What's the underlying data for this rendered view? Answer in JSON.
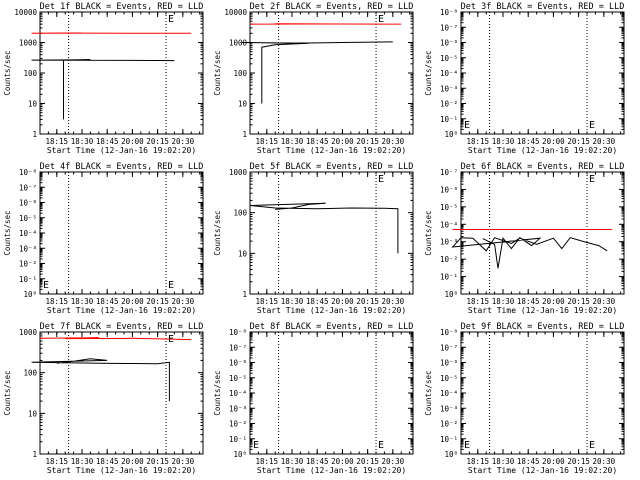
{
  "figure": {
    "xlabel": "Start Time (12-Jan-16 19:02:20)",
    "ylabel": "Counts/sec",
    "colors": {
      "events": "#000000",
      "lld": "#ff0000",
      "background": "#ffffff"
    }
  },
  "chart_data": [
    {
      "type": "line",
      "title": "Det 1f BLACK = Events, RED = LLD",
      "yscale": "log",
      "ylim": [
        1,
        10000
      ],
      "xlim": [
        "18:05",
        "20:42"
      ],
      "x_ticks": [
        "18:15",
        "18:30",
        "18:45",
        "20:00",
        "20:15",
        "20:30"
      ],
      "y_ticks": [
        "1",
        "10",
        "100",
        "1000",
        "10000"
      ],
      "marker_label": "E",
      "dotted_lines_at": [
        "18:22",
        "20:20"
      ],
      "series": [
        {
          "name": "Events",
          "color": "#000000",
          "points": [
            [
              "18:19",
              3
            ],
            [
              "18:19",
              260
            ],
            [
              "18:35",
              270
            ],
            [
              "19:00",
              265
            ],
            [
              "19:30",
              262
            ],
            [
              "20:00",
              258
            ],
            [
              "20:25",
              255
            ]
          ]
        },
        {
          "name": "LLD",
          "color": "#ff0000",
          "points": [
            [
              "18:05",
              2000
            ],
            [
              "18:30",
              2050
            ],
            [
              "19:00",
              2000
            ],
            [
              "19:30",
              2030
            ],
            [
              "20:00",
              2020
            ],
            [
              "20:35",
              2000
            ]
          ]
        }
      ]
    },
    {
      "type": "line",
      "title": "Det 2f BLACK = Events, RED = LLD",
      "yscale": "log",
      "ylim": [
        1,
        10000
      ],
      "xlim": [
        "18:05",
        "20:42"
      ],
      "x_ticks": [
        "18:15",
        "18:30",
        "18:45",
        "20:00",
        "20:15",
        "20:30"
      ],
      "y_ticks": [
        "1",
        "10",
        "100",
        "1000",
        "10000"
      ],
      "marker_label": "E",
      "dotted_lines_at": [
        "18:22",
        "20:20"
      ],
      "series": [
        {
          "name": "Events",
          "color": "#000000",
          "points": [
            [
              "18:12",
              10
            ],
            [
              "18:12",
              700
            ],
            [
              "18:20",
              850
            ],
            [
              "18:40",
              950
            ],
            [
              "19:00",
              1000
            ],
            [
              "19:30",
              950
            ],
            [
              "20:00",
              1000
            ],
            [
              "20:30",
              1050
            ]
          ]
        },
        {
          "name": "LLD",
          "color": "#ff0000",
          "points": [
            [
              "18:05",
              4000
            ],
            [
              "18:40",
              4050
            ],
            [
              "19:20",
              4100
            ],
            [
              "20:00",
              4050
            ],
            [
              "20:35",
              4000
            ]
          ]
        }
      ]
    },
    {
      "type": "line",
      "title": "Det 3f BLACK = Events, RED = LLD",
      "yscale": "log",
      "ylim": [
        1,
        100000000
      ],
      "xlim": [
        "18:05",
        "20:42"
      ],
      "x_ticks": [
        "18:15",
        "18:30",
        "18:45",
        "20:00",
        "20:15",
        "20:30"
      ],
      "y_ticks": [
        "10⁰",
        "10⁻¹",
        "10⁻²",
        "10⁻³",
        "10⁻⁴",
        "10⁻⁵",
        "10⁻⁶",
        "10⁻⁷",
        "10⁻⁸"
      ],
      "marker_label": "E",
      "dotted_lines_at": [
        "18:22",
        "20:20"
      ],
      "series": []
    },
    {
      "type": "line",
      "title": "Det 4f BLACK = Events, RED = LLD",
      "yscale": "log",
      "ylim": [
        1,
        100000000
      ],
      "xlim": [
        "18:05",
        "20:42"
      ],
      "x_ticks": [
        "18:15",
        "18:30",
        "18:45",
        "20:00",
        "20:15",
        "20:30"
      ],
      "y_ticks": [
        "10⁰",
        "10⁻¹",
        "10⁻²",
        "10⁻³",
        "10⁻⁴",
        "10⁻⁵",
        "10⁻⁶",
        "10⁻⁷",
        "10⁻⁸"
      ],
      "marker_label": "E",
      "dotted_lines_at": [
        "18:22",
        "20:20"
      ],
      "series": []
    },
    {
      "type": "line",
      "title": "Det 5f BLACK = Events, RED = LLD",
      "yscale": "log",
      "ylim": [
        1,
        1000
      ],
      "xlim": [
        "18:05",
        "20:42"
      ],
      "x_ticks": [
        "18:15",
        "18:30",
        "18:45",
        "20:00",
        "20:15",
        "20:30"
      ],
      "y_ticks": [
        "1",
        "10",
        "100",
        "1000"
      ],
      "marker_label": "E",
      "dotted_lines_at": [
        "18:22",
        "20:20"
      ],
      "series": [
        {
          "name": "Events",
          "color": "#000000",
          "points": [
            [
              "18:20",
              120
            ],
            [
              "18:30",
              130
            ],
            [
              "18:40",
              160
            ],
            [
              "18:50",
              170
            ],
            [
              "19:05",
              150
            ],
            [
              "19:20",
              130
            ],
            [
              "19:45",
              125
            ],
            [
              "20:05",
              130
            ],
            [
              "20:25",
              128
            ],
            [
              "20:33",
              125
            ],
            [
              "20:33",
              10
            ]
          ]
        }
      ]
    },
    {
      "type": "line",
      "title": "Det 6f BLACK = Events, RED = LLD",
      "yscale": "log",
      "ylim": [
        1,
        10000000
      ],
      "xlim": [
        "18:05",
        "20:42"
      ],
      "x_ticks": [
        "18:15",
        "18:30",
        "18:45",
        "20:00",
        "20:15",
        "20:30"
      ],
      "y_ticks": [
        "10⁰",
        "10⁻¹",
        "10⁻²",
        "10⁻³",
        "10⁻⁴",
        "10⁻⁵",
        "10⁻⁶",
        "10⁻⁷"
      ],
      "marker_label": "E",
      "dotted_lines_at": [
        "18:22",
        "20:20"
      ],
      "series": [
        {
          "name": "Events",
          "color": "#000000",
          "points": [
            [
              "18:18",
              1500
            ],
            [
              "18:25",
              700
            ],
            [
              "18:27",
              30
            ],
            [
              "18:30",
              1600
            ],
            [
              "18:35",
              400
            ],
            [
              "18:40",
              1700
            ],
            [
              "18:47",
              600
            ],
            [
              "18:52",
              1600
            ],
            [
              "19:00",
              500
            ],
            [
              "19:05",
              1700
            ],
            [
              "19:12",
              1600
            ],
            [
              "19:20",
              300
            ],
            [
              "19:25",
              1700
            ],
            [
              "19:35",
              800
            ],
            [
              "19:40",
              1600
            ],
            [
              "19:50",
              700
            ],
            [
              "20:00",
              1600
            ],
            [
              "20:05",
              400
            ],
            [
              "20:10",
              1700
            ],
            [
              "20:20",
              900
            ],
            [
              "20:27",
              600
            ],
            [
              "20:32",
              300
            ]
          ]
        },
        {
          "name": "LLD",
          "color": "#ff0000",
          "points": [
            [
              "18:05",
              5000
            ],
            [
              "19:00",
              5000
            ],
            [
              "20:00",
              5000
            ],
            [
              "20:35",
              5000
            ]
          ]
        }
      ]
    },
    {
      "type": "line",
      "title": "Det 7f BLACK = Events, RED = LLD",
      "yscale": "log",
      "ylim": [
        1,
        1000
      ],
      "xlim": [
        "18:05",
        "20:42"
      ],
      "x_ticks": [
        "18:15",
        "18:30",
        "18:45",
        "20:00",
        "20:15",
        "20:30"
      ],
      "y_ticks": [
        "1",
        "10",
        "100",
        "1000"
      ],
      "marker_label": "E",
      "dotted_lines_at": [
        "18:22",
        "20:20"
      ],
      "series": [
        {
          "name": "Events",
          "color": "#000000",
          "points": [
            [
              "18:15",
              170
            ],
            [
              "18:25",
              190
            ],
            [
              "18:35",
              220
            ],
            [
              "18:45",
              200
            ],
            [
              "19:00",
              180
            ],
            [
              "19:20",
              175
            ],
            [
              "19:40",
              170
            ],
            [
              "20:00",
              168
            ],
            [
              "20:15",
              165
            ],
            [
              "20:22",
              180
            ],
            [
              "20:22",
              20
            ]
          ]
        },
        {
          "name": "LLD",
          "color": "#ff0000",
          "points": [
            [
              "18:05",
              700
            ],
            [
              "18:40",
              720
            ],
            [
              "19:20",
              690
            ],
            [
              "20:00",
              700
            ],
            [
              "20:35",
              650
            ]
          ]
        }
      ]
    },
    {
      "type": "line",
      "title": "Det 8f BLACK = Events, RED = LLD",
      "yscale": "log",
      "ylim": [
        1,
        100000000
      ],
      "xlim": [
        "18:05",
        "20:42"
      ],
      "x_ticks": [
        "18:15",
        "18:30",
        "18:45",
        "20:00",
        "20:15",
        "20:30"
      ],
      "y_ticks": [
        "10⁰",
        "10⁻¹",
        "10⁻²",
        "10⁻³",
        "10⁻⁴",
        "10⁻⁵",
        "10⁻⁶",
        "10⁻⁷",
        "10⁻⁸"
      ],
      "marker_label": "E",
      "dotted_lines_at": [
        "18:22",
        "20:20"
      ],
      "series": []
    },
    {
      "type": "line",
      "title": "Det 9f BLACK = Events, RED = LLD",
      "yscale": "log",
      "ylim": [
        1,
        100000000
      ],
      "xlim": [
        "18:05",
        "20:42"
      ],
      "x_ticks": [
        "18:15",
        "18:30",
        "18:45",
        "20:00",
        "20:15",
        "20:30"
      ],
      "y_ticks": [
        "10⁰",
        "10⁻¹",
        "10⁻²",
        "10⁻³",
        "10⁻⁴",
        "10⁻⁵",
        "10⁻⁶",
        "10⁻⁷",
        "10⁻⁸"
      ],
      "marker_label": "E",
      "dotted_lines_at": [
        "18:22",
        "20:20"
      ],
      "series": []
    }
  ]
}
